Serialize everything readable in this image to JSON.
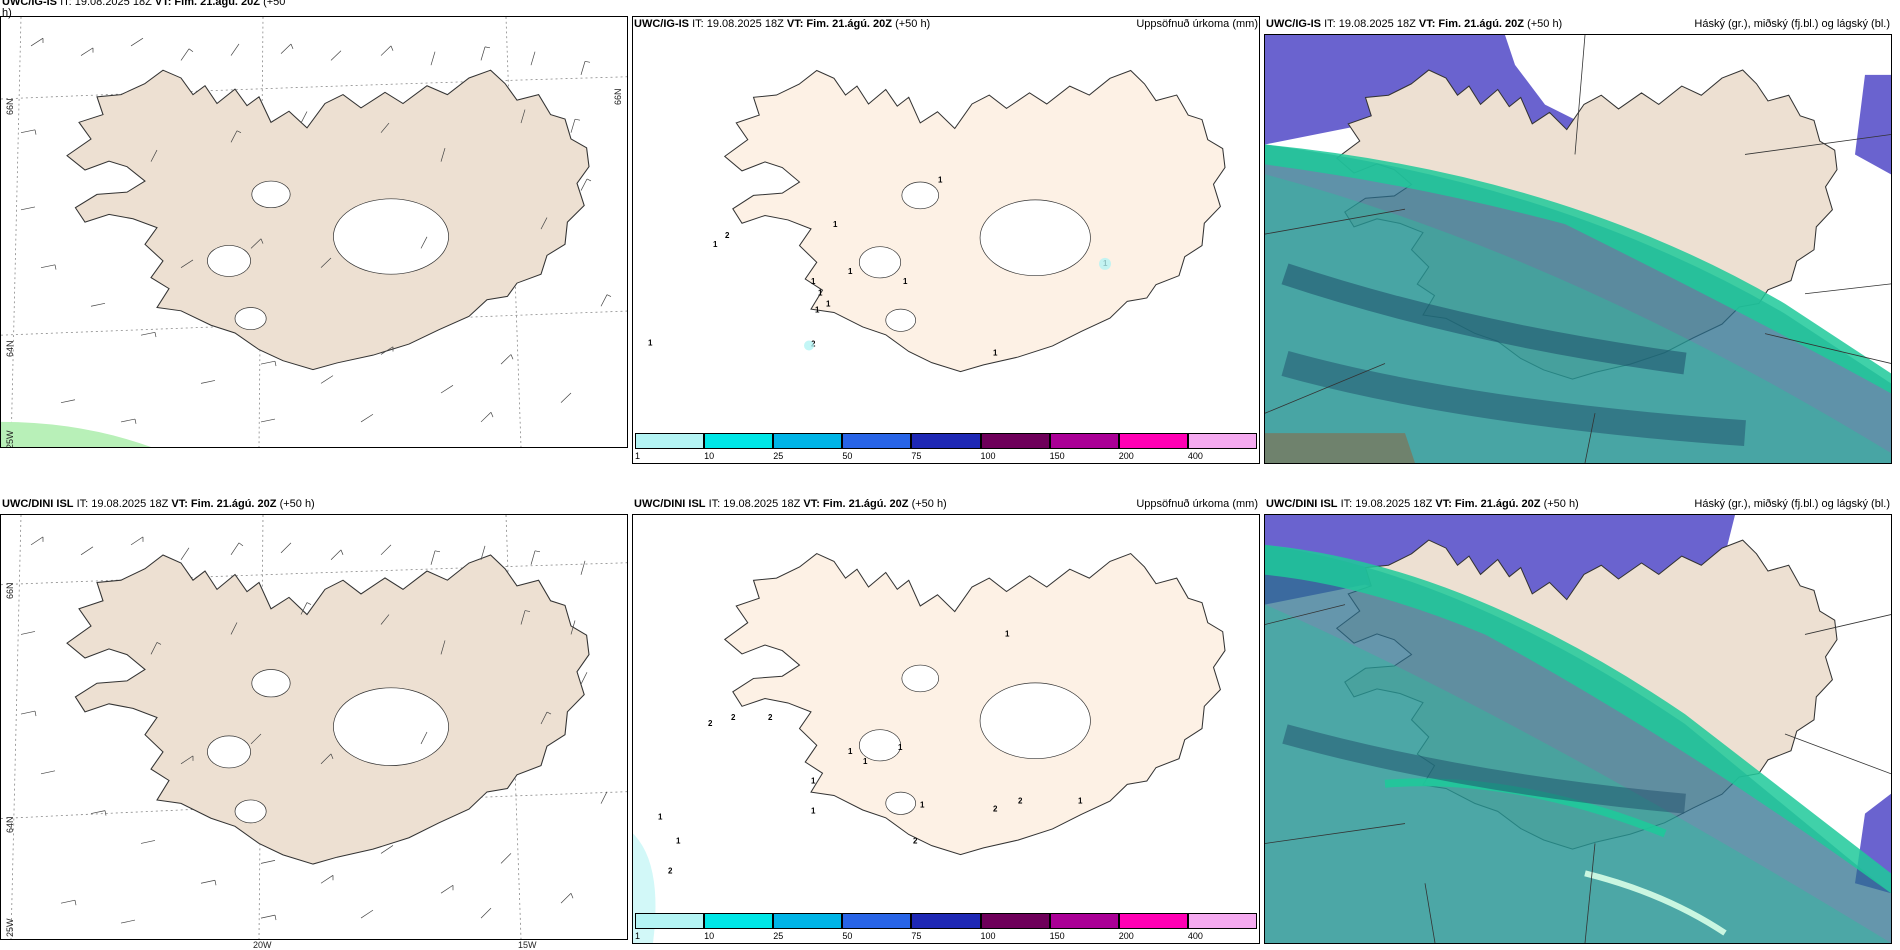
{
  "panels": {
    "p1": {
      "model": "UWC/IG-IS",
      "it": "IT: 19.08.2025 18Z",
      "vt": "VT: Fim. 21.ágú. 20Z",
      "lead": "(+50",
      "lead2": "h)"
    },
    "p2": {
      "model": "UWC/IG-IS",
      "it": "IT: 19.08.2025 18Z",
      "vt": "VT: Fim. 21.ágú. 20Z",
      "lead": "(+50 h)",
      "right": "Uppsöfnuð úrkoma (mm)"
    },
    "p3": {
      "model": "UWC/IG-IS",
      "it": "IT: 19.08.2025 18Z",
      "vt": "VT: Fim. 21.ágú. 20Z",
      "lead": "(+50 h)",
      "right": "Háský (gr.), miðský (fj.bl.) og lágský (bl.)"
    },
    "p4": {
      "model": "UWC/DINI ISL",
      "it": "IT: 19.08.2025 18Z",
      "vt": "VT: Fim. 21.ágú. 20Z",
      "lead": "(+50 h)"
    },
    "p5": {
      "model": "UWC/DINI ISL",
      "it": "IT: 19.08.2025 18Z",
      "vt": "VT: Fim. 21.ágú. 20Z",
      "lead": "(+50 h)",
      "right": "Uppsöfnuð úrkoma (mm)"
    },
    "p6": {
      "model": "UWC/DINI ISL",
      "it": "IT: 19.08.2025 18Z",
      "vt": "VT: Fim. 21.ágú. 20Z",
      "lead": "(+50 h)",
      "right": "Háský (gr.), miðský (fj.bl.) og lágský (bl.)"
    }
  },
  "grid_labels": {
    "lat66": "66N",
    "lat64": "64N",
    "lon25": "25W",
    "lon20": "20W",
    "lon15": "15W",
    "lat66_small": "66N",
    "lat64_small": "64N"
  },
  "colorbar": {
    "ticks": [
      "1",
      "10",
      "25",
      "50",
      "75",
      "100",
      "150",
      "200",
      "400"
    ],
    "colors": [
      "#b4f4f4",
      "#00e6e6",
      "#00b4e6",
      "#2864e6",
      "#1e28b4",
      "#6e005a",
      "#aa0096",
      "#ff00b4",
      "#f5aaf0"
    ]
  },
  "precip_labels_top": [
    "1",
    "2",
    "1",
    "1",
    "1",
    "1",
    "1",
    "1",
    "1",
    "1",
    "1",
    "1",
    "2",
    "1"
  ],
  "precip_labels_bottom": [
    "1",
    "2",
    "2",
    "2",
    "1",
    "1",
    "1",
    "1",
    "1",
    "1",
    "2",
    "2",
    "1",
    "1",
    "1",
    "2",
    "2"
  ],
  "colors": {
    "land": "#ede0d2",
    "land_precip": "#fdf1e5",
    "high_cloud": "#6a63cf",
    "mid_cloud": "#1fc99a",
    "low_cloud": "#2a6e8c"
  }
}
